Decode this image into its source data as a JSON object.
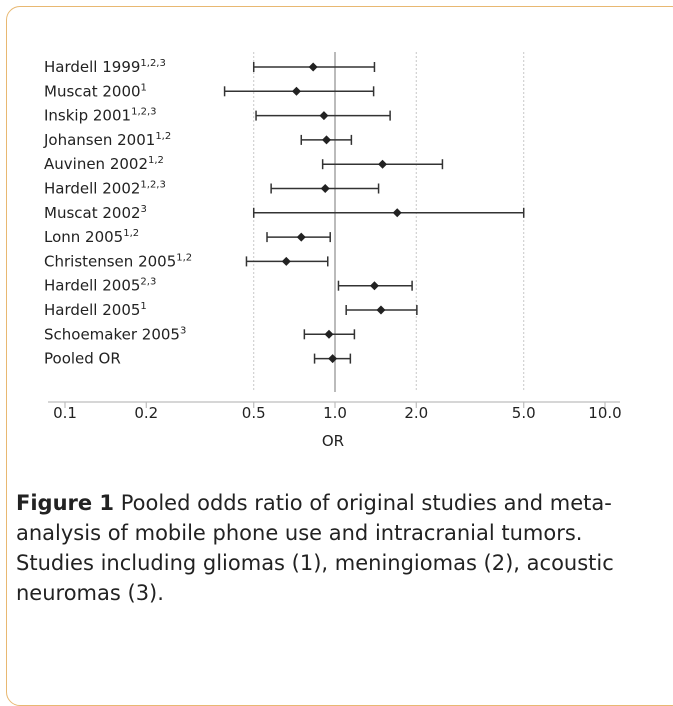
{
  "chart_data": {
    "type": "forest",
    "xlabel": "OR",
    "x_scale": "log",
    "xlim": [
      0.1,
      10.0
    ],
    "x_ticks": [
      "0.1",
      "0.2",
      "0.5",
      "1.0",
      "2.0",
      "5.0",
      "10.0"
    ],
    "x_tick_values": [
      0.1,
      0.2,
      0.5,
      1.0,
      2.0,
      5.0,
      10.0
    ],
    "gridlines_at": [
      0.5,
      2.0,
      5.0
    ],
    "reference_line": 1.0,
    "studies": [
      {
        "label": "Hardell 1999",
        "sup": "1,2,3",
        "or": 0.83,
        "lo": 0.5,
        "hi": 1.4
      },
      {
        "label": "Muscat 2000",
        "sup": "1",
        "or": 0.72,
        "lo": 0.39,
        "hi": 1.39
      },
      {
        "label": "Inskip 2001",
        "sup": "1,2,3",
        "or": 0.91,
        "lo": 0.51,
        "hi": 1.6
      },
      {
        "label": "Johansen 2001",
        "sup": "1,2",
        "or": 0.93,
        "lo": 0.75,
        "hi": 1.15
      },
      {
        "label": "Auvinen 2002",
        "sup": "1,2",
        "or": 1.5,
        "lo": 0.9,
        "hi": 2.5
      },
      {
        "label": "Hardell 2002",
        "sup": "1,2,3",
        "or": 0.92,
        "lo": 0.58,
        "hi": 1.45
      },
      {
        "label": "Muscat 2002",
        "sup": "3",
        "or": 1.7,
        "lo": 0.5,
        "hi": 5.0
      },
      {
        "label": "Lonn 2005",
        "sup": "1,2",
        "or": 0.75,
        "lo": 0.56,
        "hi": 0.96
      },
      {
        "label": "Christensen 2005",
        "sup": "1,2",
        "or": 0.66,
        "lo": 0.47,
        "hi": 0.94
      },
      {
        "label": "Hardell 2005",
        "sup": "2,3",
        "or": 1.4,
        "lo": 1.03,
        "hi": 1.93
      },
      {
        "label": "Hardell 2005",
        "sup": "1",
        "or": 1.48,
        "lo": 1.1,
        "hi": 2.01
      },
      {
        "label": "Schoemaker 2005",
        "sup": "3",
        "or": 0.95,
        "lo": 0.77,
        "hi": 1.18
      },
      {
        "label": "Pooled OR",
        "sup": "",
        "or": 0.98,
        "lo": 0.84,
        "hi": 1.14
      }
    ]
  },
  "caption": {
    "label": "Figure 1",
    "text": " Pooled odds ratio of original studies and meta-analysis of mobile phone use and intracranial tumors. Studies including gliomas (1), meningiomas (2), acoustic neuromas (3)."
  }
}
